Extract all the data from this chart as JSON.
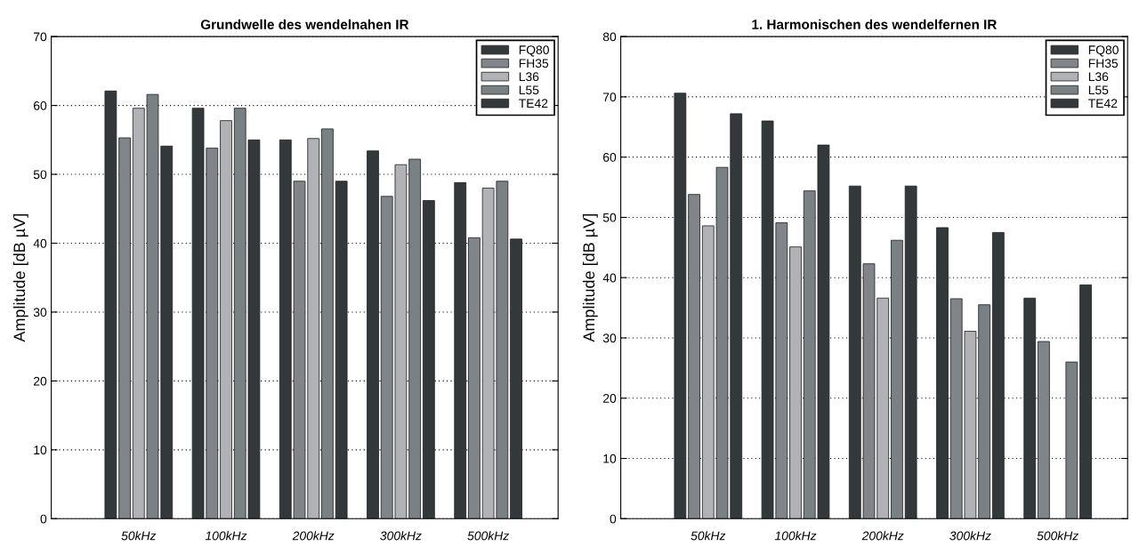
{
  "chart_data": [
    {
      "type": "bar",
      "title": "Grundwelle des wendelnahen IR",
      "ylabel": "Amplitude [dB µV]",
      "categories": [
        "50kHz",
        "100kHz",
        "200kHz",
        "300kHz",
        "500kHz"
      ],
      "series": [
        {
          "name": "FQ80",
          "color": "#33383b",
          "values": [
            62.1,
            59.6,
            55.0,
            53.4,
            48.8
          ]
        },
        {
          "name": "FH35",
          "color": "#818589",
          "values": [
            55.3,
            53.8,
            49.0,
            46.8,
            40.8
          ]
        },
        {
          "name": "L36",
          "color": "#b1b2b5",
          "values": [
            59.6,
            57.8,
            55.2,
            51.4,
            48.0
          ]
        },
        {
          "name": "L55",
          "color": "#7a8184",
          "values": [
            61.6,
            59.6,
            56.6,
            52.2,
            49.0
          ]
        },
        {
          "name": "TE42",
          "color": "#33383b",
          "values": [
            54.1,
            55.0,
            49.0,
            46.2,
            40.6
          ]
        }
      ],
      "ylim": [
        0,
        70
      ],
      "yticks": [
        0,
        10,
        20,
        30,
        40,
        50,
        60,
        70
      ],
      "grid": "y",
      "legend": "top right"
    },
    {
      "type": "bar",
      "title": "1. Harmonischen des wendelfernen IR",
      "ylabel": "Amplitude [dB µV]",
      "categories": [
        "50kHz",
        "100kHz",
        "200kHz",
        "300kHz",
        "500kHz"
      ],
      "series": [
        {
          "name": "FQ80",
          "color": "#33383b",
          "values": [
            70.6,
            66.0,
            55.2,
            48.3,
            36.6
          ]
        },
        {
          "name": "FH35",
          "color": "#818589",
          "values": [
            53.8,
            49.1,
            42.3,
            36.5,
            29.4
          ]
        },
        {
          "name": "L36",
          "color": "#b1b2b5",
          "values": [
            48.6,
            45.1,
            36.6,
            31.1,
            null
          ]
        },
        {
          "name": "L55",
          "color": "#7a8184",
          "values": [
            58.3,
            54.4,
            46.2,
            35.5,
            26.0
          ]
        },
        {
          "name": "TE42",
          "color": "#33383b",
          "values": [
            67.2,
            62.0,
            55.2,
            47.5,
            38.8
          ]
        }
      ],
      "ylim": [
        0,
        80
      ],
      "yticks": [
        0,
        10,
        20,
        30,
        40,
        50,
        60,
        70,
        80
      ],
      "grid": "y",
      "legend": "top right"
    }
  ]
}
